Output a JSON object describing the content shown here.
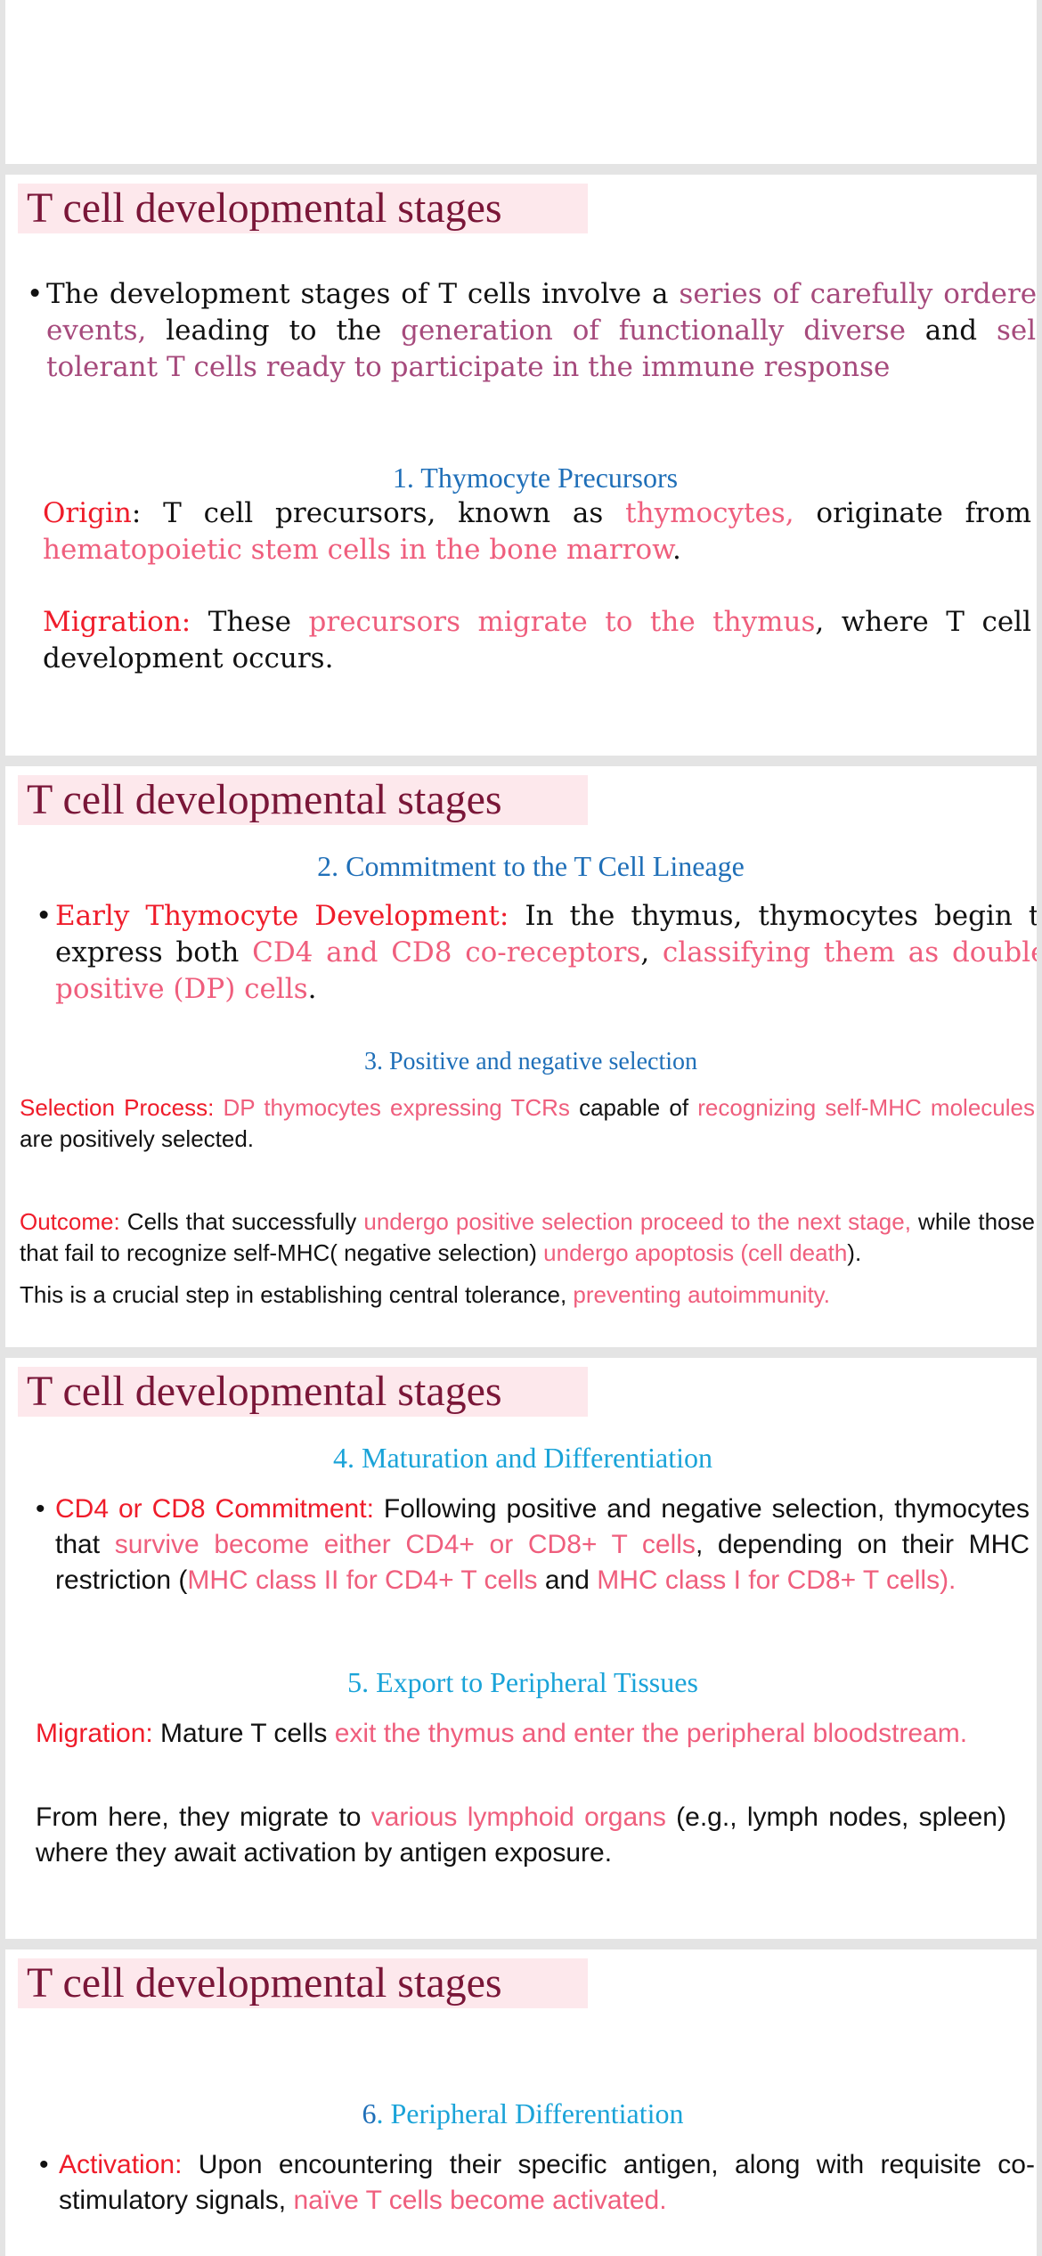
{
  "slide2": {
    "title": "T cell developmental stages",
    "intro": {
      "t1": "The development stages of T cells involve a ",
      "h1": "series of carefully ordered events,",
      "t2": " leading to the ",
      "h2": "generation of functionally diverse",
      "t3": " and ",
      "h3": "self-tolerant T cells ready to participate in the immune response"
    },
    "heading1": "1. Thymocyte Precursors",
    "origin": {
      "label": "Origin",
      "t1": ": T cell precursors, known as ",
      "h1": "thymocytes,",
      "t2": " originate from ",
      "h2": "hematopoietic stem cells in the bone marrow",
      "t3": "."
    },
    "migration": {
      "label": "Migration:",
      "t1": " These ",
      "h1": "precursors migrate to the thymus",
      "t2": ", where T cell development occurs."
    }
  },
  "slide3": {
    "title": "T cell developmental stages",
    "heading2": "2. Commitment to the T Cell Lineage",
    "early": {
      "label": "Early Thymocyte Development:",
      "t1": " In the thymus, thymocytes begin to express both ",
      "h1": "CD4 and CD8 co-receptors",
      "t2": ", ",
      "h2": "classifying them as double-positive (DP) cells",
      "t3": "."
    },
    "heading3": "3. Positive and negative selection",
    "selection": {
      "label": "Selection Process:",
      "h1": " DP thymocytes expressing TCRs",
      "t1": " capable of ",
      "h2": "recognizing self-MHC molecules",
      "t2": " are positively selected."
    },
    "outcome": {
      "label": "Outcome:",
      "t1": " Cells that successfully ",
      "h1": "undergo positive selection proceed to the next stage,",
      "t2": " while those that fail to recognize self-MHC( negative selection) ",
      "h2": "undergo apoptosis (cell death",
      "t3": ")."
    },
    "tolerance": {
      "t1": "This is a crucial step in establishing central tolerance, ",
      "h1": "preventing autoimmunity."
    }
  },
  "slide4": {
    "title": "T cell developmental stages",
    "heading4": "4. Maturation and Differentiation",
    "commit": {
      "label": "CD4 or CD8 Commitment:",
      "t1": " Following positive and negative selection, thymocytes that ",
      "h1": "survive become either CD4+ or CD8+ T cells",
      "t2": ", depending on their MHC restriction (",
      "h2": "MHC class II for CD4+ T cells",
      "t3": " and ",
      "h3": "MHC class I for CD8+ T cells)."
    },
    "heading5": "5. Export to Peripheral Tissues",
    "migration": {
      "label": "Migration:",
      "t1": " Mature T cells ",
      "h1": "exit the thymus and enter the peripheral bloodstream."
    },
    "from_here": {
      "t1": "From here, they migrate to ",
      "h1": "various lymphoid organs",
      "t2": " (e.g., lymph nodes, spleen) where they await activation by antigen exposure."
    }
  },
  "slide5": {
    "title": "T cell developmental stages",
    "heading6_num": "6",
    "heading6_text": ". Peripheral Differentiation",
    "activation": {
      "label": "Activation:",
      "t1": " Upon encountering their specific antigen, along with requisite co-stimulatory signals, ",
      "h1": "naïve T cells become activated."
    }
  }
}
